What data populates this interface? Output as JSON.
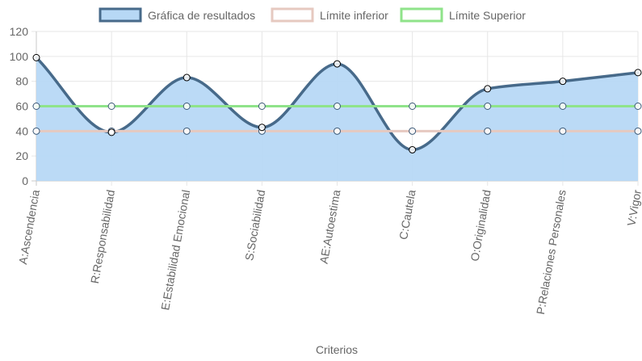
{
  "chart_data": {
    "type": "line",
    "categories": [
      "A:Ascendencia",
      "R:Responsabilidad",
      "E:Estabilidad Emocional",
      "S:Sociabilidad",
      "AE:Autoestima",
      "C:Cautela",
      "O:Originalidad",
      "P:Relaciones Personales",
      "V:Vigor"
    ],
    "series": [
      {
        "name": "Gráfica de resultados",
        "values": [
          99,
          39,
          83,
          43,
          94,
          25,
          74,
          80,
          87
        ],
        "color": "#476a8a",
        "fill": "#b7d8f5",
        "filled": true,
        "smooth": true
      },
      {
        "name": "Límite inferior",
        "values": [
          40,
          40,
          40,
          40,
          40,
          40,
          40,
          40,
          40
        ],
        "color": "#e6c9c0",
        "filled": false,
        "smooth": false
      },
      {
        "name": "Límite Superior",
        "values": [
          60,
          60,
          60,
          60,
          60,
          60,
          60,
          60,
          60
        ],
        "color": "#8fe38a",
        "filled": false,
        "smooth": false
      }
    ],
    "xlabel": "Criterios",
    "ylabel": "",
    "ylim": [
      0,
      120
    ],
    "yticks": [
      0,
      20,
      40,
      60,
      80,
      100,
      120
    ],
    "grid": true,
    "legend": "top"
  }
}
